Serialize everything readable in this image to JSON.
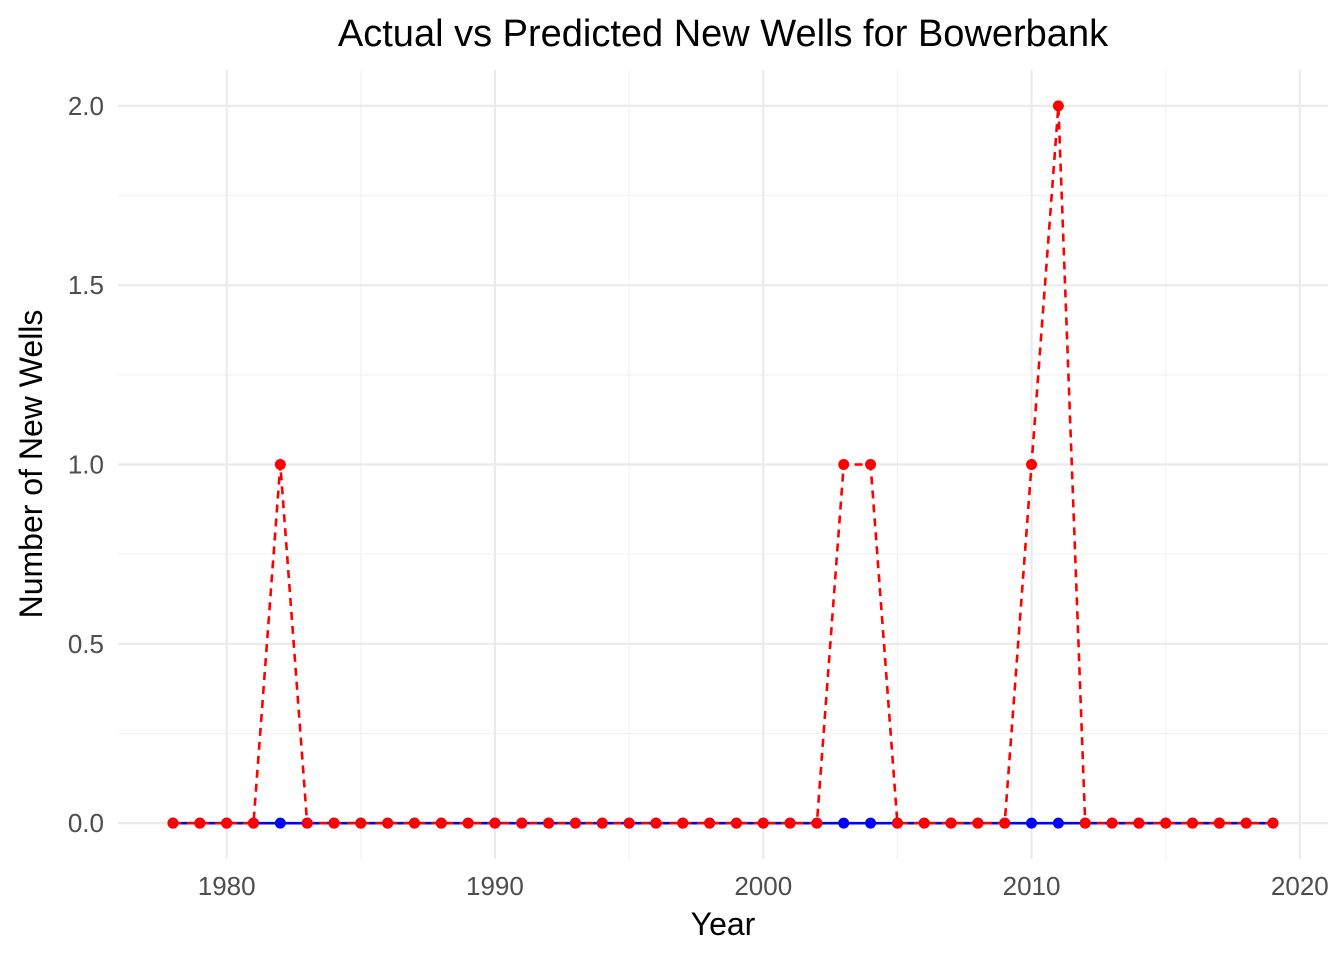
{
  "chart_data": {
    "type": "line",
    "title": "Actual vs Predicted New Wells for Bowerbank",
    "xlabel": "Year",
    "ylabel": "Number of New Wells",
    "xlim": [
      1975.95,
      2021.05
    ],
    "ylim": [
      -0.1,
      2.1
    ],
    "x_ticks": [
      1980,
      1990,
      2000,
      2010,
      2020
    ],
    "x_tick_labels": [
      "1980",
      "1990",
      "2000",
      "2010",
      "2020"
    ],
    "y_ticks": [
      0.0,
      0.5,
      1.0,
      1.5,
      2.0
    ],
    "y_tick_labels": [
      "0.0",
      "0.5",
      "1.0",
      "1.5",
      "2.0"
    ],
    "grid": true,
    "legend": "none",
    "x": [
      1978,
      1979,
      1980,
      1981,
      1982,
      1983,
      1984,
      1985,
      1986,
      1987,
      1988,
      1989,
      1990,
      1991,
      1992,
      1993,
      1994,
      1995,
      1996,
      1997,
      1998,
      1999,
      2000,
      2001,
      2002,
      2003,
      2004,
      2005,
      2006,
      2007,
      2008,
      2009,
      2010,
      2011,
      2012,
      2013,
      2014,
      2015,
      2016,
      2017,
      2018,
      2019
    ],
    "series": [
      {
        "color": "#0000ff",
        "line_style": "solid",
        "values": [
          0,
          0,
          0,
          0,
          0,
          0,
          0,
          0,
          0,
          0,
          0,
          0,
          0,
          0,
          0,
          0,
          0,
          0,
          0,
          0,
          0,
          0,
          0,
          0,
          0,
          0,
          0,
          0,
          0,
          0,
          0,
          0,
          0,
          0,
          0,
          0,
          0,
          0,
          0,
          0,
          0,
          0
        ]
      },
      {
        "color": "#ff0000",
        "line_style": "dashed",
        "values": [
          0,
          0,
          0,
          0,
          1,
          0,
          0,
          0,
          0,
          0,
          0,
          0,
          0,
          0,
          0,
          0,
          0,
          0,
          0,
          0,
          0,
          0,
          0,
          0,
          0,
          1,
          1,
          0,
          0,
          0,
          0,
          0,
          1,
          2,
          0,
          0,
          0,
          0,
          0,
          0,
          0,
          0
        ]
      }
    ]
  }
}
